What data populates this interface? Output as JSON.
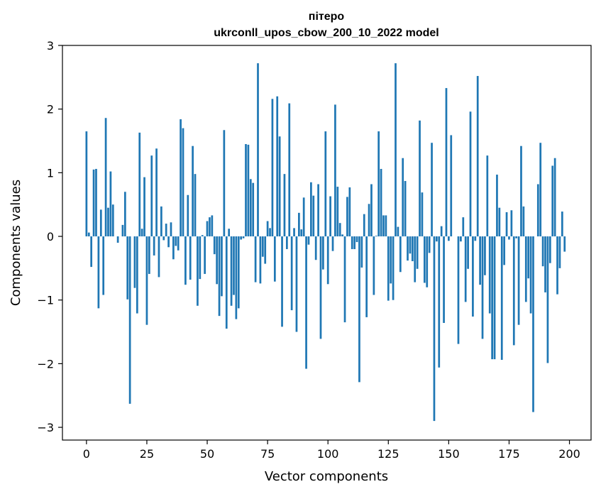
{
  "chart_data": {
    "type": "bar",
    "title_line1": "пітеро",
    "title_line2": "ukrconll_upos_cbow_200_10_2022 model",
    "xlabel": "Vector components",
    "ylabel": "Components values",
    "xlim": [
      -9.95,
      208.95
    ],
    "ylim": [
      -3.2,
      3.0
    ],
    "xticks": [
      0,
      25,
      50,
      75,
      100,
      125,
      150,
      175,
      200
    ],
    "yticks": [
      -3,
      -2,
      -1,
      0,
      1,
      2,
      3
    ],
    "ytick_labels": [
      "−3",
      "−2",
      "−1",
      "0",
      "1",
      "2",
      "3"
    ],
    "bar_color": "#1f77b4",
    "values": [
      1.65,
      0.06,
      -0.48,
      1.05,
      1.06,
      -1.13,
      0.42,
      -0.92,
      1.86,
      0.45,
      1.02,
      0.5,
      0.0,
      -0.1,
      0.0,
      0.18,
      0.7,
      -0.99,
      -2.63,
      0.0,
      -0.81,
      -1.21,
      1.63,
      0.12,
      0.93,
      -1.39,
      -0.59,
      1.27,
      -0.3,
      1.38,
      -0.64,
      0.47,
      -0.06,
      0.2,
      -0.17,
      0.22,
      -0.36,
      -0.15,
      -0.22,
      1.84,
      1.7,
      -0.76,
      0.65,
      -0.68,
      1.42,
      0.98,
      -1.09,
      -0.67,
      0.02,
      -0.59,
      0.24,
      0.3,
      0.33,
      -0.28,
      -0.75,
      -1.25,
      -0.94,
      1.67,
      -1.45,
      0.12,
      -1.09,
      -0.92,
      -1.3,
      -1.13,
      -0.05,
      -0.03,
      1.45,
      1.44,
      0.9,
      0.84,
      -0.72,
      2.72,
      -0.74,
      -0.32,
      -0.43,
      0.24,
      0.13,
      2.16,
      -0.71,
      2.2,
      1.57,
      -1.42,
      0.98,
      -0.2,
      2.09,
      -1.16,
      0.13,
      -1.5,
      0.37,
      0.11,
      0.61,
      -2.08,
      -0.13,
      0.85,
      0.64,
      -0.37,
      0.82,
      -1.61,
      -0.52,
      1.65,
      -0.75,
      0.63,
      -0.23,
      2.07,
      0.78,
      0.21,
      0.03,
      -1.35,
      0.62,
      0.77,
      -0.2,
      -0.2,
      -0.09,
      -2.29,
      -0.49,
      0.35,
      -1.27,
      0.51,
      0.82,
      -0.92,
      0.01,
      1.65,
      1.06,
      0.33,
      0.33,
      -1.01,
      -0.74,
      -1.0,
      2.72,
      0.15,
      -0.56,
      1.23,
      0.87,
      -0.38,
      -0.27,
      -0.39,
      -0.72,
      -0.51,
      1.82,
      0.69,
      -0.73,
      -0.8,
      -0.26,
      1.47,
      -2.9,
      -0.08,
      -2.06,
      0.16,
      -1.36,
      2.33,
      -0.07,
      1.59,
      0.0,
      0.0,
      -1.69,
      -0.08,
      0.3,
      -1.03,
      -0.51,
      1.96,
      -1.26,
      -0.07,
      2.52,
      -0.76,
      -1.61,
      -0.61,
      1.27,
      -1.21,
      -1.93,
      -1.93,
      0.97,
      0.45,
      -1.94,
      -0.45,
      0.38,
      -0.05,
      0.41,
      -1.71,
      -0.03,
      -1.39,
      1.42,
      0.47,
      -1.03,
      -0.66,
      -1.21,
      -2.76,
      0.0,
      0.82,
      1.47,
      -0.47,
      -0.88,
      -1.99,
      -0.42,
      1.11,
      1.23,
      -0.91,
      -0.5,
      0.39,
      -0.24
    ]
  }
}
